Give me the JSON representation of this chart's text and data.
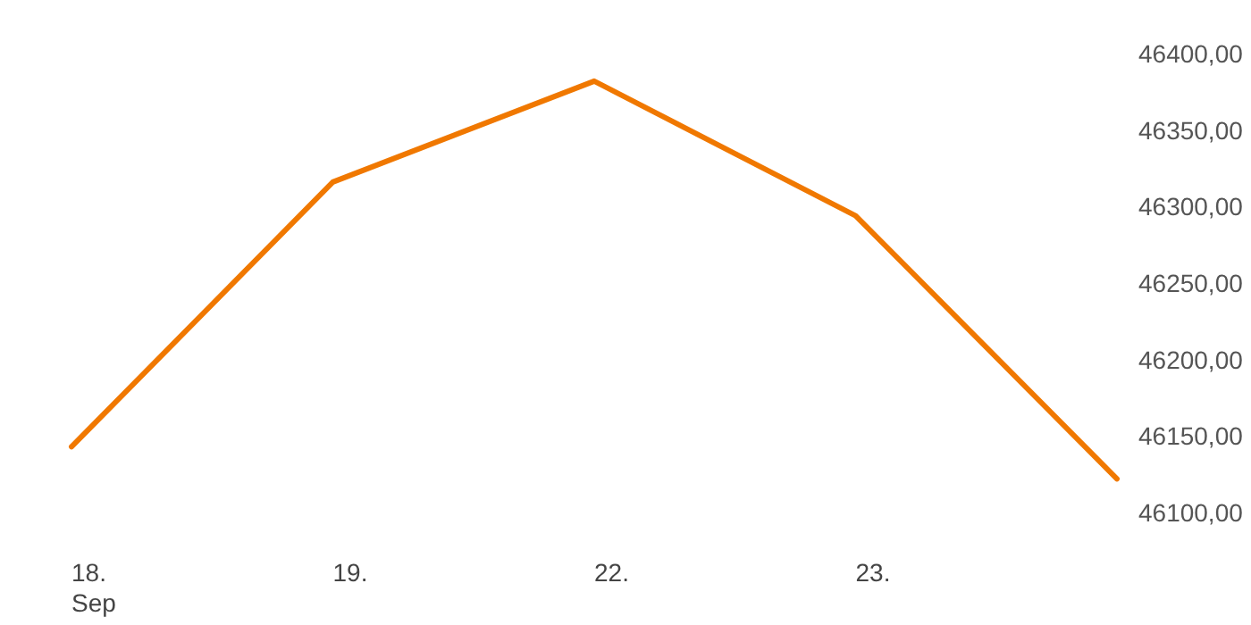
{
  "chart_data": {
    "type": "line",
    "categories": [
      "18.\nSep",
      "19.",
      "22.",
      "23.",
      null
    ],
    "series": [
      {
        "color": "#f07800",
        "values": [
          46143,
          46316,
          46382,
          46294,
          46122
        ]
      }
    ],
    "ylim": [
      46100,
      46400
    ],
    "yticks": [
      {
        "value": 46100,
        "label": "46100,00"
      },
      {
        "value": 46150,
        "label": "46150,00"
      },
      {
        "value": 46200,
        "label": "46200,00"
      },
      {
        "value": 46250,
        "label": "46250,00"
      },
      {
        "value": 46300,
        "label": "46300,00"
      },
      {
        "value": 46350,
        "label": "46350,00"
      },
      {
        "value": 46400,
        "label": "46400,00"
      }
    ],
    "grid": false,
    "marker": "none",
    "line_style": "solid"
  }
}
